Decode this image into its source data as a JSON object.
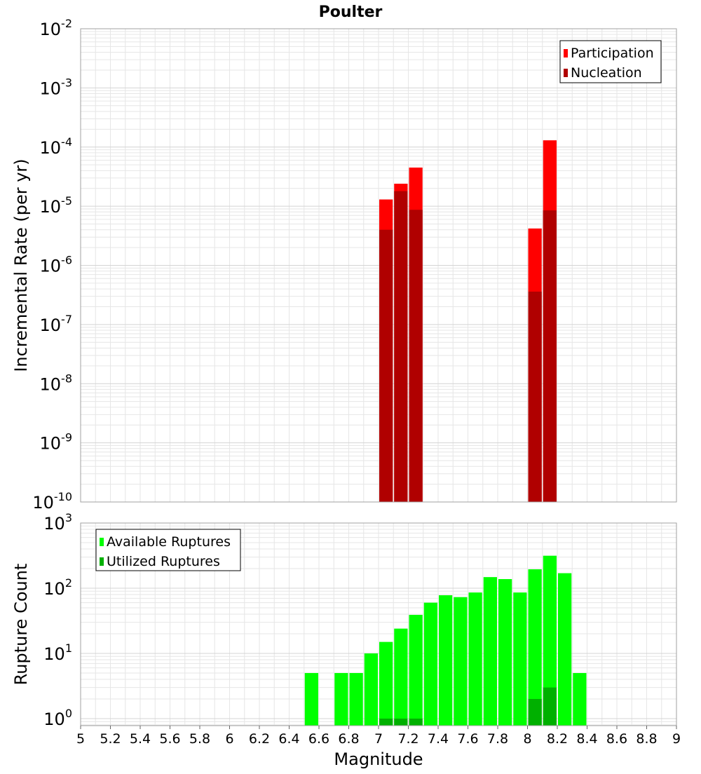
{
  "title": "Poulter",
  "colors": {
    "participation": "#ff0000",
    "nucleation": "#b00000",
    "available": "#00ff00",
    "utilized": "#00b000",
    "grid": "#e6e6e6",
    "frame": "#a0a0a0"
  },
  "chart_data": [
    {
      "type": "bar",
      "name": "rate-panel",
      "scale": "log",
      "ylabel": "Incremental Rate (per yr)",
      "ylim": [
        1e-10,
        0.01
      ],
      "y_tick_exponents": [
        "-10",
        "-9",
        "-8",
        "-7",
        "-6",
        "-5",
        "-4",
        "-3",
        "-2"
      ],
      "y_tick_base": "10",
      "legend": {
        "position": "top-right",
        "entries": [
          {
            "label": "Participation",
            "color": "#ff0000"
          },
          {
            "label": "Nucleation",
            "color": "#b00000"
          }
        ]
      },
      "bin_width": 0.1,
      "series": [
        {
          "name": "Participation",
          "x": [
            7.05,
            7.15,
            7.25,
            8.05,
            8.15
          ],
          "values": [
            1.3e-05,
            2.4e-05,
            4.5e-05,
            4.2e-06,
            0.00013
          ]
        },
        {
          "name": "Nucleation",
          "x": [
            7.05,
            7.15,
            7.25,
            8.05,
            8.15
          ],
          "values": [
            4e-06,
            1.8e-05,
            8.7e-06,
            3.6e-07,
            8.5e-06
          ]
        }
      ]
    },
    {
      "type": "bar",
      "name": "count-panel",
      "scale": "log",
      "ylabel": "Rupture Count",
      "xlabel": "Magnitude",
      "ylim": [
        0.78,
        1000
      ],
      "xlim": [
        5,
        9
      ],
      "y_tick_exponents": [
        "0",
        "1",
        "2",
        "3"
      ],
      "y_tick_base": "10",
      "x_ticks": [
        "5",
        "5.2",
        "5.4",
        "5.6",
        "5.8",
        "6",
        "6.2",
        "6.4",
        "6.6",
        "6.8",
        "7",
        "7.2",
        "7.4",
        "7.6",
        "7.8",
        "8",
        "8.2",
        "8.4",
        "8.6",
        "8.8",
        "9"
      ],
      "legend": {
        "position": "top-left",
        "entries": [
          {
            "label": "Available Ruptures",
            "color": "#00ff00"
          },
          {
            "label": "Utilized Ruptures",
            "color": "#00b000"
          }
        ]
      },
      "bin_width": 0.1,
      "series": [
        {
          "name": "Available Ruptures",
          "x": [
            6.55,
            6.75,
            6.85,
            6.95,
            7.05,
            7.15,
            7.25,
            7.35,
            7.45,
            7.55,
            7.65,
            7.75,
            7.85,
            7.95,
            8.05,
            8.15,
            8.25,
            8.35
          ],
          "values": [
            5,
            5,
            5,
            10,
            15,
            24,
            39,
            60,
            78,
            73,
            86,
            148,
            138,
            86,
            195,
            315,
            170,
            5
          ]
        },
        {
          "name": "Utilized Ruptures",
          "x": [
            7.05,
            7.15,
            7.25,
            8.05,
            8.15
          ],
          "values": [
            1,
            1,
            1,
            2,
            3
          ]
        }
      ]
    }
  ]
}
